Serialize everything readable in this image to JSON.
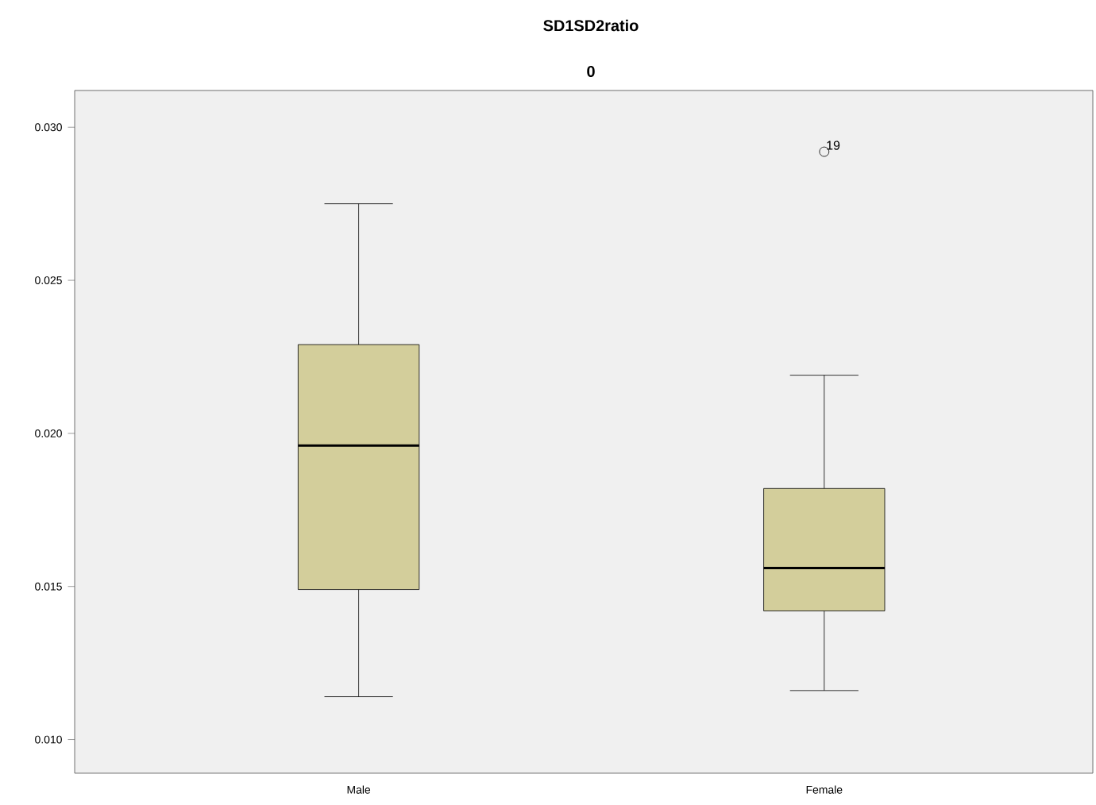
{
  "chart_data": {
    "type": "box",
    "title": "SD1SD2ratio",
    "subtitle": "0",
    "categories": [
      "Male",
      "Female"
    ],
    "boxes": [
      {
        "low": 0.0114,
        "q1": 0.0149,
        "median": 0.0196,
        "q3": 0.0229,
        "high": 0.0275
      },
      {
        "low": 0.0116,
        "q1": 0.0142,
        "median": 0.0156,
        "q3": 0.0182,
        "high": 0.0219,
        "outliers": [
          0.0292
        ]
      }
    ],
    "color": "#d3ce9b",
    "ylim": [
      0.0089,
      0.0312
    ],
    "yticks": [
      {
        "value": 0.01,
        "label": "0.010"
      },
      {
        "value": 0.015,
        "label": "0.015"
      },
      {
        "value": 0.02,
        "label": "0.020"
      },
      {
        "value": 0.025,
        "label": "0.025"
      },
      {
        "value": 0.03,
        "label": "0.030"
      }
    ],
    "annotations": [
      "19"
    ],
    "grid": false
  }
}
